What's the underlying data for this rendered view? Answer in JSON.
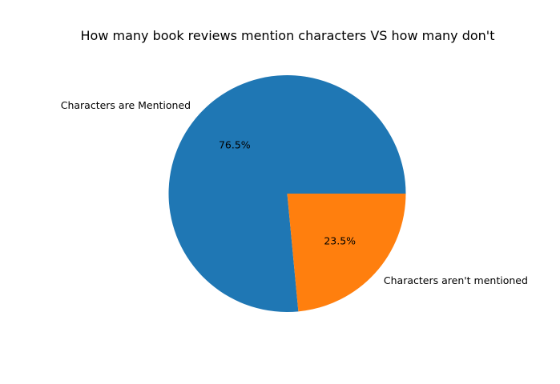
{
  "chart_data": {
    "type": "pie",
    "title": "How many book reviews mention characters VS how many don't",
    "slices": [
      {
        "label": "Characters are Mentioned",
        "value": 76.5,
        "display": "76.5%",
        "color": "#1f77b4"
      },
      {
        "label": "Characters aren't mentioned",
        "value": 23.5,
        "display": "23.5%",
        "color": "#ff7f0e"
      }
    ],
    "start_angle_deg": 0,
    "direction": "counterclockwise"
  }
}
